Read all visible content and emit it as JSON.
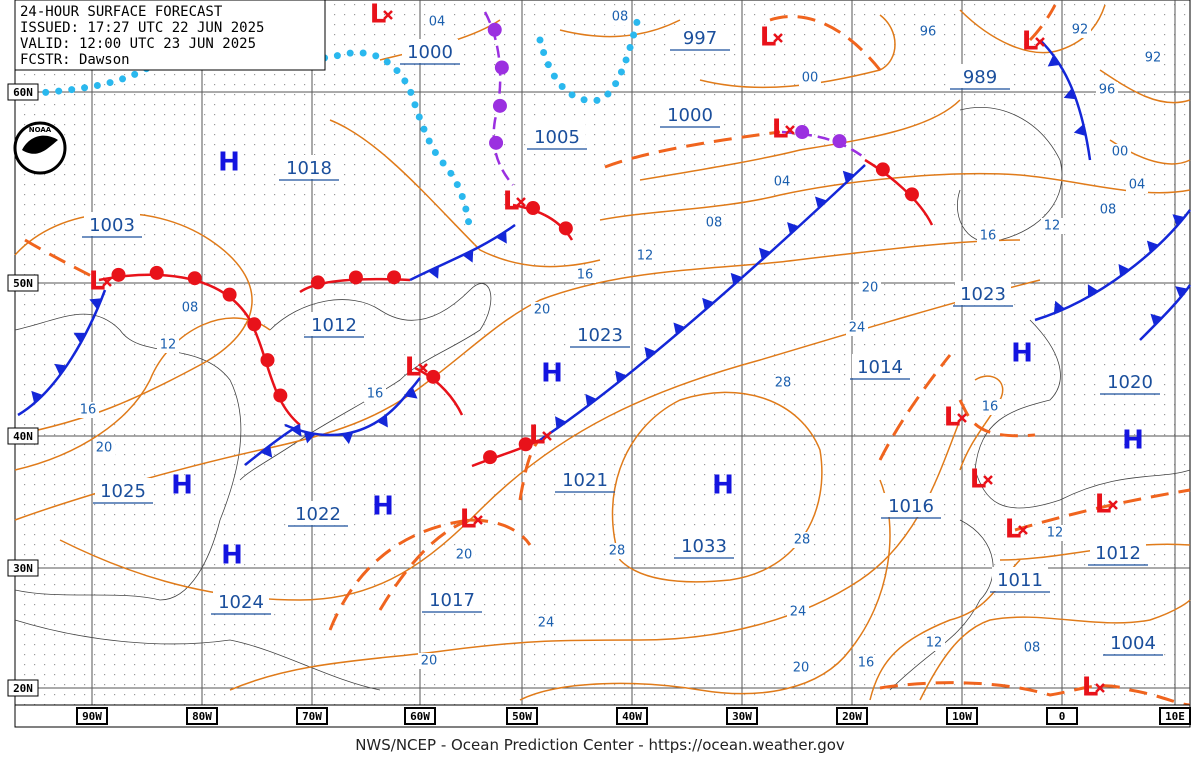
{
  "header": {
    "lines": [
      "24-HOUR SURFACE FORECAST",
      "ISSUED: 17:27 UTC 22 JUN 2025",
      "VALID: 12:00 UTC 23 JUN 2025",
      "FCSTR: Dawson"
    ]
  },
  "logo": "NOAA",
  "latitude_labels": [
    "60N",
    "50N",
    "40N",
    "30N",
    "20N"
  ],
  "longitude_labels": [
    "90W",
    "80W",
    "70W",
    "60W",
    "50W",
    "40W",
    "30W",
    "20W",
    "10W",
    "0",
    "10E"
  ],
  "central_pressures": [
    "1000",
    "997",
    "989",
    "1000",
    "1005",
    "1018",
    "1003",
    "1012",
    "1023",
    "1023",
    "1014",
    "1020",
    "1021",
    "1025",
    "1022",
    "1033",
    "1016",
    "1012",
    "1011",
    "1017",
    "1024",
    "1004"
  ],
  "isobar_labels": [
    "04",
    "08",
    "96",
    "92",
    "00",
    "92",
    "96",
    "00",
    "04",
    "04",
    "08",
    "08",
    "12",
    "12",
    "16",
    "16",
    "20",
    "08",
    "12",
    "20",
    "24",
    "16",
    "16",
    "28",
    "16",
    "20",
    "20",
    "28",
    "28",
    "12",
    "24",
    "24",
    "20",
    "20",
    "16",
    "12",
    "08"
  ],
  "highs": [
    "H",
    "H",
    "H",
    "H",
    "H",
    "H",
    "H",
    "H"
  ],
  "lows": [
    "L",
    "L",
    "L",
    "L",
    "L",
    "L",
    "L",
    "L",
    "L",
    "L",
    "L",
    "L",
    "L",
    "L"
  ],
  "footer": "NWS/NCEP - Ocean Prediction Center - https://ocean.weather.gov"
}
